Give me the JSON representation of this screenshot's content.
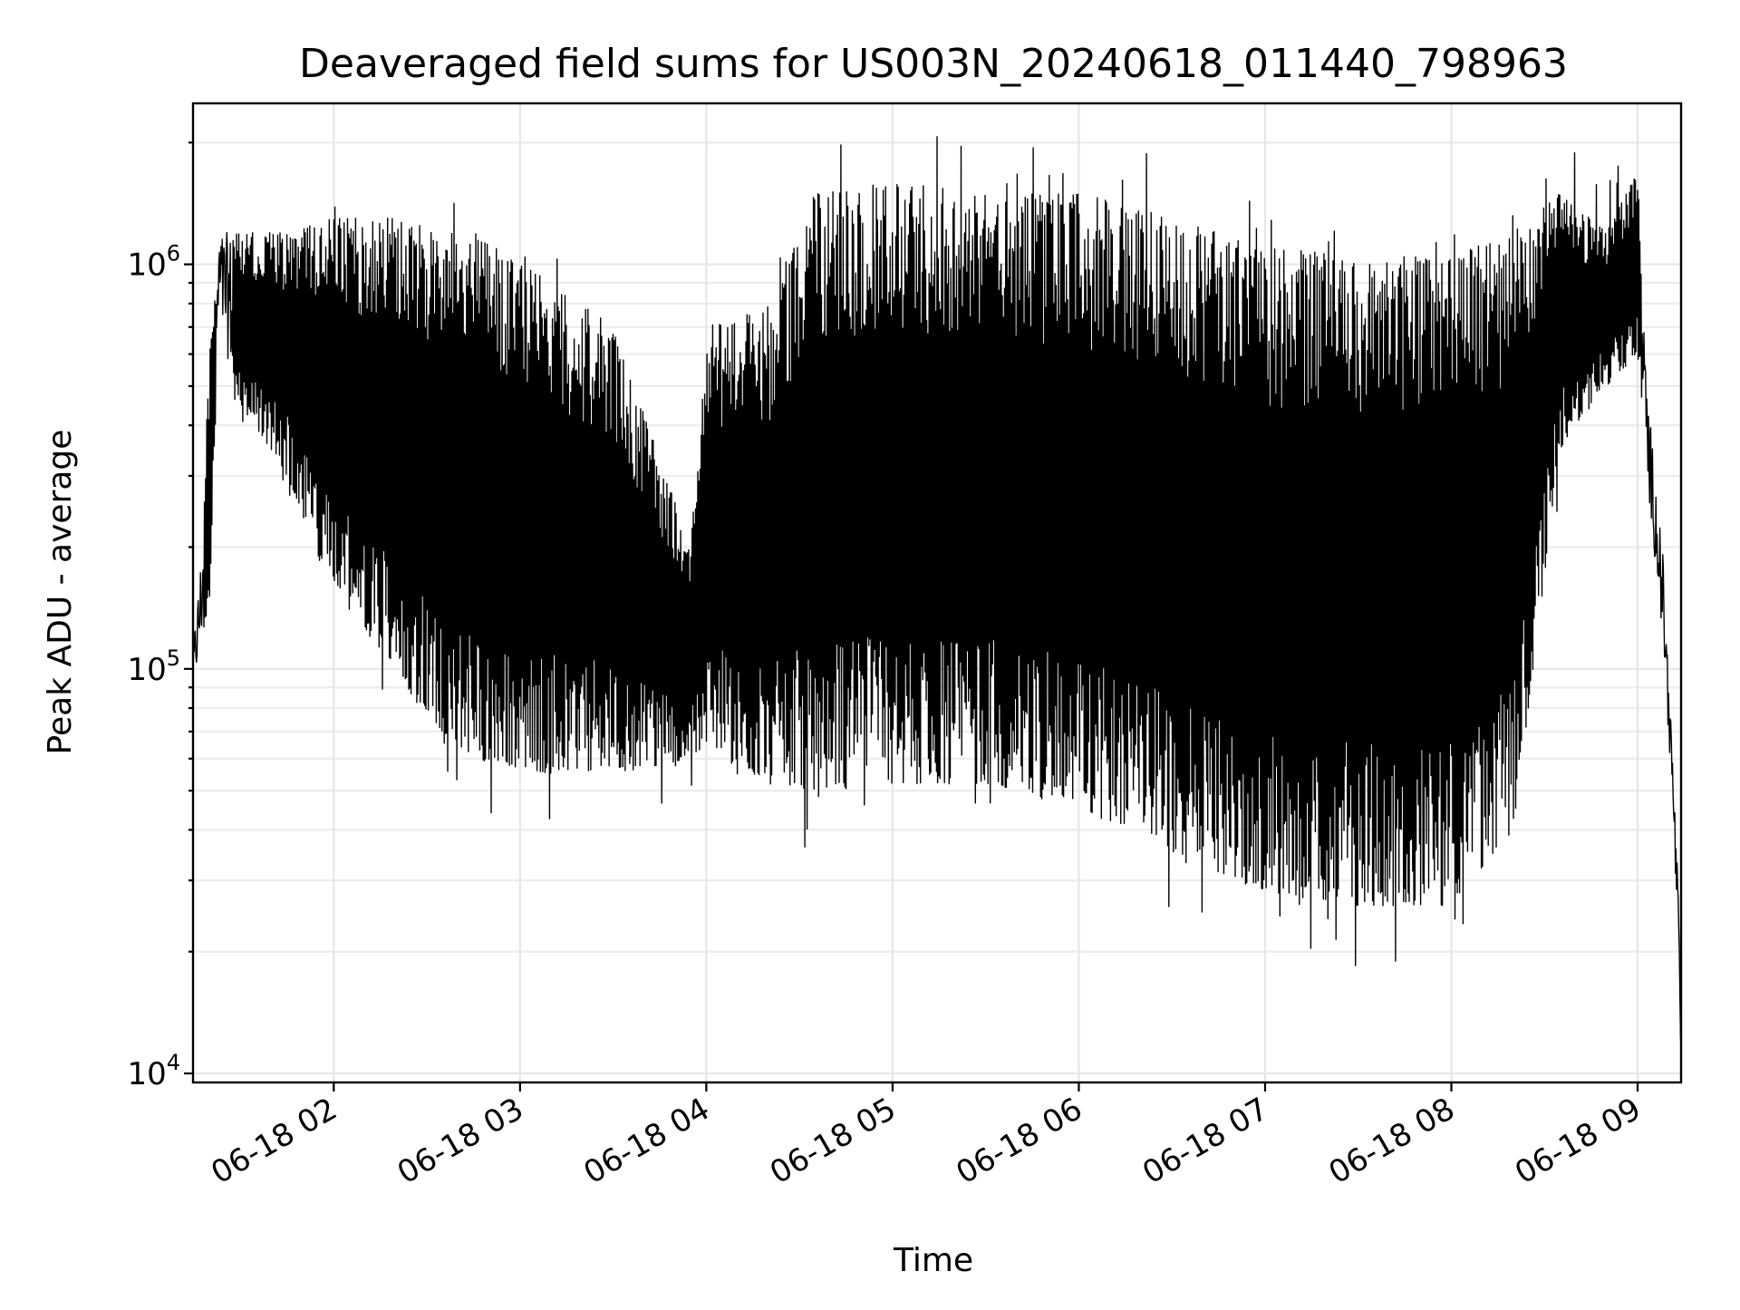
{
  "chart_data": {
    "type": "line",
    "title": "Deaveraged field sums for US003N_20240618_011440_798963",
    "xlabel": "Time",
    "ylabel": "Peak ADU - average",
    "yscale": "log",
    "grid": true,
    "legend": "none",
    "line_color": "#000000",
    "xlim": [
      "2024-06-18 01:14:40",
      "2024-06-18 09:14:00"
    ],
    "ylim": [
      9500,
      2500000
    ],
    "x_ticks": [
      {
        "value": "2024-06-18 02:00",
        "label": "06-18 02"
      },
      {
        "value": "2024-06-18 03:00",
        "label": "06-18 03"
      },
      {
        "value": "2024-06-18 04:00",
        "label": "06-18 04"
      },
      {
        "value": "2024-06-18 05:00",
        "label": "06-18 05"
      },
      {
        "value": "2024-06-18 06:00",
        "label": "06-18 06"
      },
      {
        "value": "2024-06-18 07:00",
        "label": "06-18 07"
      },
      {
        "value": "2024-06-18 08:00",
        "label": "06-18 08"
      },
      {
        "value": "2024-06-18 09:00",
        "label": "06-18 09"
      }
    ],
    "y_ticks": [
      {
        "value": 10000,
        "base": "10",
        "exp": "4"
      },
      {
        "value": 100000,
        "base": "10",
        "exp": "5"
      },
      {
        "value": 1000000,
        "base": "10",
        "exp": "6"
      }
    ],
    "series": [
      {
        "name": "",
        "regime": [
          {
            "t": "2024-06-18 01:14",
            "low": 80000,
            "high": 100000
          },
          {
            "t": "2024-06-18 01:17",
            "low": 110000,
            "high": 180000
          },
          {
            "t": "2024-06-18 01:20",
            "low": 150000,
            "high": 600000
          },
          {
            "t": "2024-06-18 01:23",
            "low": 700000,
            "high": 1200000
          },
          {
            "t": "2024-06-18 01:30",
            "low": 450000,
            "high": 1200000
          },
          {
            "t": "2024-06-18 01:45",
            "low": 300000,
            "high": 1200000
          },
          {
            "t": "2024-06-18 02:00",
            "low": 150000,
            "high": 1300000
          },
          {
            "t": "2024-06-18 02:20",
            "low": 100000,
            "high": 1300000
          },
          {
            "t": "2024-06-18 02:30",
            "low": 75000,
            "high": 1200000
          },
          {
            "t": "2024-06-18 02:45",
            "low": 60000,
            "high": 1200000
          },
          {
            "t": "2024-06-18 03:10",
            "low": 55000,
            "high": 900000
          },
          {
            "t": "2024-06-18 03:30",
            "low": 55000,
            "high": 700000
          },
          {
            "t": "2024-06-18 03:55",
            "low": 60000,
            "high": 200000
          },
          {
            "t": "2024-06-18 04:00",
            "low": 65000,
            "high": 700000
          },
          {
            "t": "2024-06-18 04:20",
            "low": 52000,
            "high": 800000
          },
          {
            "t": "2024-06-18 04:35",
            "low": 50000,
            "high": 1500000
          },
          {
            "t": "2024-06-18 05:00",
            "low": 52000,
            "high": 1600000
          },
          {
            "t": "2024-06-18 05:30",
            "low": 52000,
            "high": 1500000
          },
          {
            "t": "2024-06-18 06:00",
            "low": 45000,
            "high": 1500000
          },
          {
            "t": "2024-06-18 06:30",
            "low": 35000,
            "high": 1300000
          },
          {
            "t": "2024-06-18 07:00",
            "low": 28000,
            "high": 1100000
          },
          {
            "t": "2024-06-18 07:30",
            "low": 26000,
            "high": 1050000
          },
          {
            "t": "2024-06-18 08:00",
            "low": 26000,
            "high": 1050000
          },
          {
            "t": "2024-06-18 08:20",
            "low": 40000,
            "high": 1200000
          },
          {
            "t": "2024-06-18 08:35",
            "low": 350000,
            "high": 1500000
          },
          {
            "t": "2024-06-18 08:50",
            "low": 500000,
            "high": 1200000
          },
          {
            "t": "2024-06-18 09:00",
            "low": 600000,
            "high": 1700000
          },
          {
            "t": "2024-06-18 09:03",
            "low": 300000,
            "high": 500000
          },
          {
            "t": "2024-06-18 09:08",
            "low": 120000,
            "high": 200000
          },
          {
            "t": "2024-06-18 09:11",
            "low": 50000,
            "high": 70000
          },
          {
            "t": "2024-06-18 09:13",
            "low": 20000,
            "high": 30000
          },
          {
            "t": "2024-06-18 09:14",
            "low": 10500,
            "high": 12000
          }
        ]
      }
    ]
  }
}
